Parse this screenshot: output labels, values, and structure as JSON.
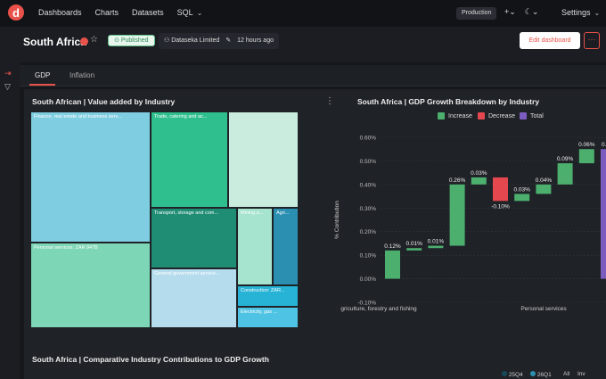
{
  "topbar": {
    "logo_letter": "d",
    "nav": [
      "Dashboards",
      "Charts",
      "Datasets",
      "SQL"
    ],
    "environment": "Production",
    "settings": "Settings"
  },
  "header": {
    "title": "South Africa",
    "status": "Published",
    "owner": "Dataseka Limited",
    "modified": "12 hours ago",
    "edit_button": "Edit dashboard"
  },
  "tabs": [
    {
      "label": "GDP",
      "active": true
    },
    {
      "label": "Inflation",
      "active": false
    }
  ],
  "treemap": {
    "title": "South African | Value added by Industry",
    "tiles": [
      {
        "label": "Finance, real estate and business serv...",
        "color": "#7fcde0"
      },
      {
        "label": "Trade, catering and ac...",
        "color": "#2fbf8f"
      },
      {
        "label": "",
        "color": "#c9ecdf"
      },
      {
        "label": "Personal services: ZAR 847B",
        "color": "#7dd6b5"
      },
      {
        "label": "Transport, storage and com...",
        "color": "#1f8c74"
      },
      {
        "label": "Mining a...",
        "color": "#a6e4cf"
      },
      {
        "label": "Agri...",
        "color": "#2a8fb0"
      },
      {
        "label": "General government service...",
        "color": "#b5dced"
      },
      {
        "label": "Construction: ZAR...",
        "color": "#27b3d6"
      },
      {
        "label": "Electricity, gas ...",
        "color": "#4fc3e3"
      }
    ]
  },
  "chart_data": {
    "type": "bar",
    "title": "South Africa | GDP Growth Breakdown by Industry",
    "ylabel": "% Contribution",
    "ylim": [
      -0.1,
      0.6
    ],
    "yticks": [
      "-0.10%",
      "0.00%",
      "0.10%",
      "0.20%",
      "0.30%",
      "0.40%",
      "0.50%",
      "0.60%"
    ],
    "legend": [
      {
        "name": "Increase",
        "color": "#4caf6e"
      },
      {
        "name": "Decrease",
        "color": "#e5474f"
      },
      {
        "name": "Total",
        "color": "#7c5cbf"
      }
    ],
    "xlabels": [
      "griculture, forestry and fishing",
      "Personal services"
    ],
    "steps": [
      {
        "value": 0.12,
        "label": "0.12%",
        "type": "increase"
      },
      {
        "value": 0.01,
        "label": "0.01%",
        "type": "increase"
      },
      {
        "value": 0.01,
        "label": "0.01%",
        "type": "increase"
      },
      {
        "value": 0.26,
        "label": "0.26%",
        "type": "increase"
      },
      {
        "value": 0.03,
        "label": "0.03%",
        "type": "increase"
      },
      {
        "value": -0.1,
        "label": "-0.10%",
        "type": "decrease"
      },
      {
        "value": 0.03,
        "label": "0.03%",
        "type": "increase"
      },
      {
        "value": 0.04,
        "label": "0.04%",
        "type": "increase"
      },
      {
        "value": 0.09,
        "label": "0.09%",
        "type": "increase"
      },
      {
        "value": 0.06,
        "label": "0.06%",
        "type": "increase"
      }
    ],
    "partial_label": "0.",
    "partial_color": "#7c5cbf"
  },
  "comparative": {
    "title": "South Africa | Comparative Industry Contributions to GDP Growth",
    "legend": [
      {
        "name": "25Q4",
        "color": "#16495a"
      },
      {
        "name": "26Q1",
        "color": "#2a90b0"
      }
    ],
    "buttons": [
      "All",
      "Inv"
    ]
  }
}
